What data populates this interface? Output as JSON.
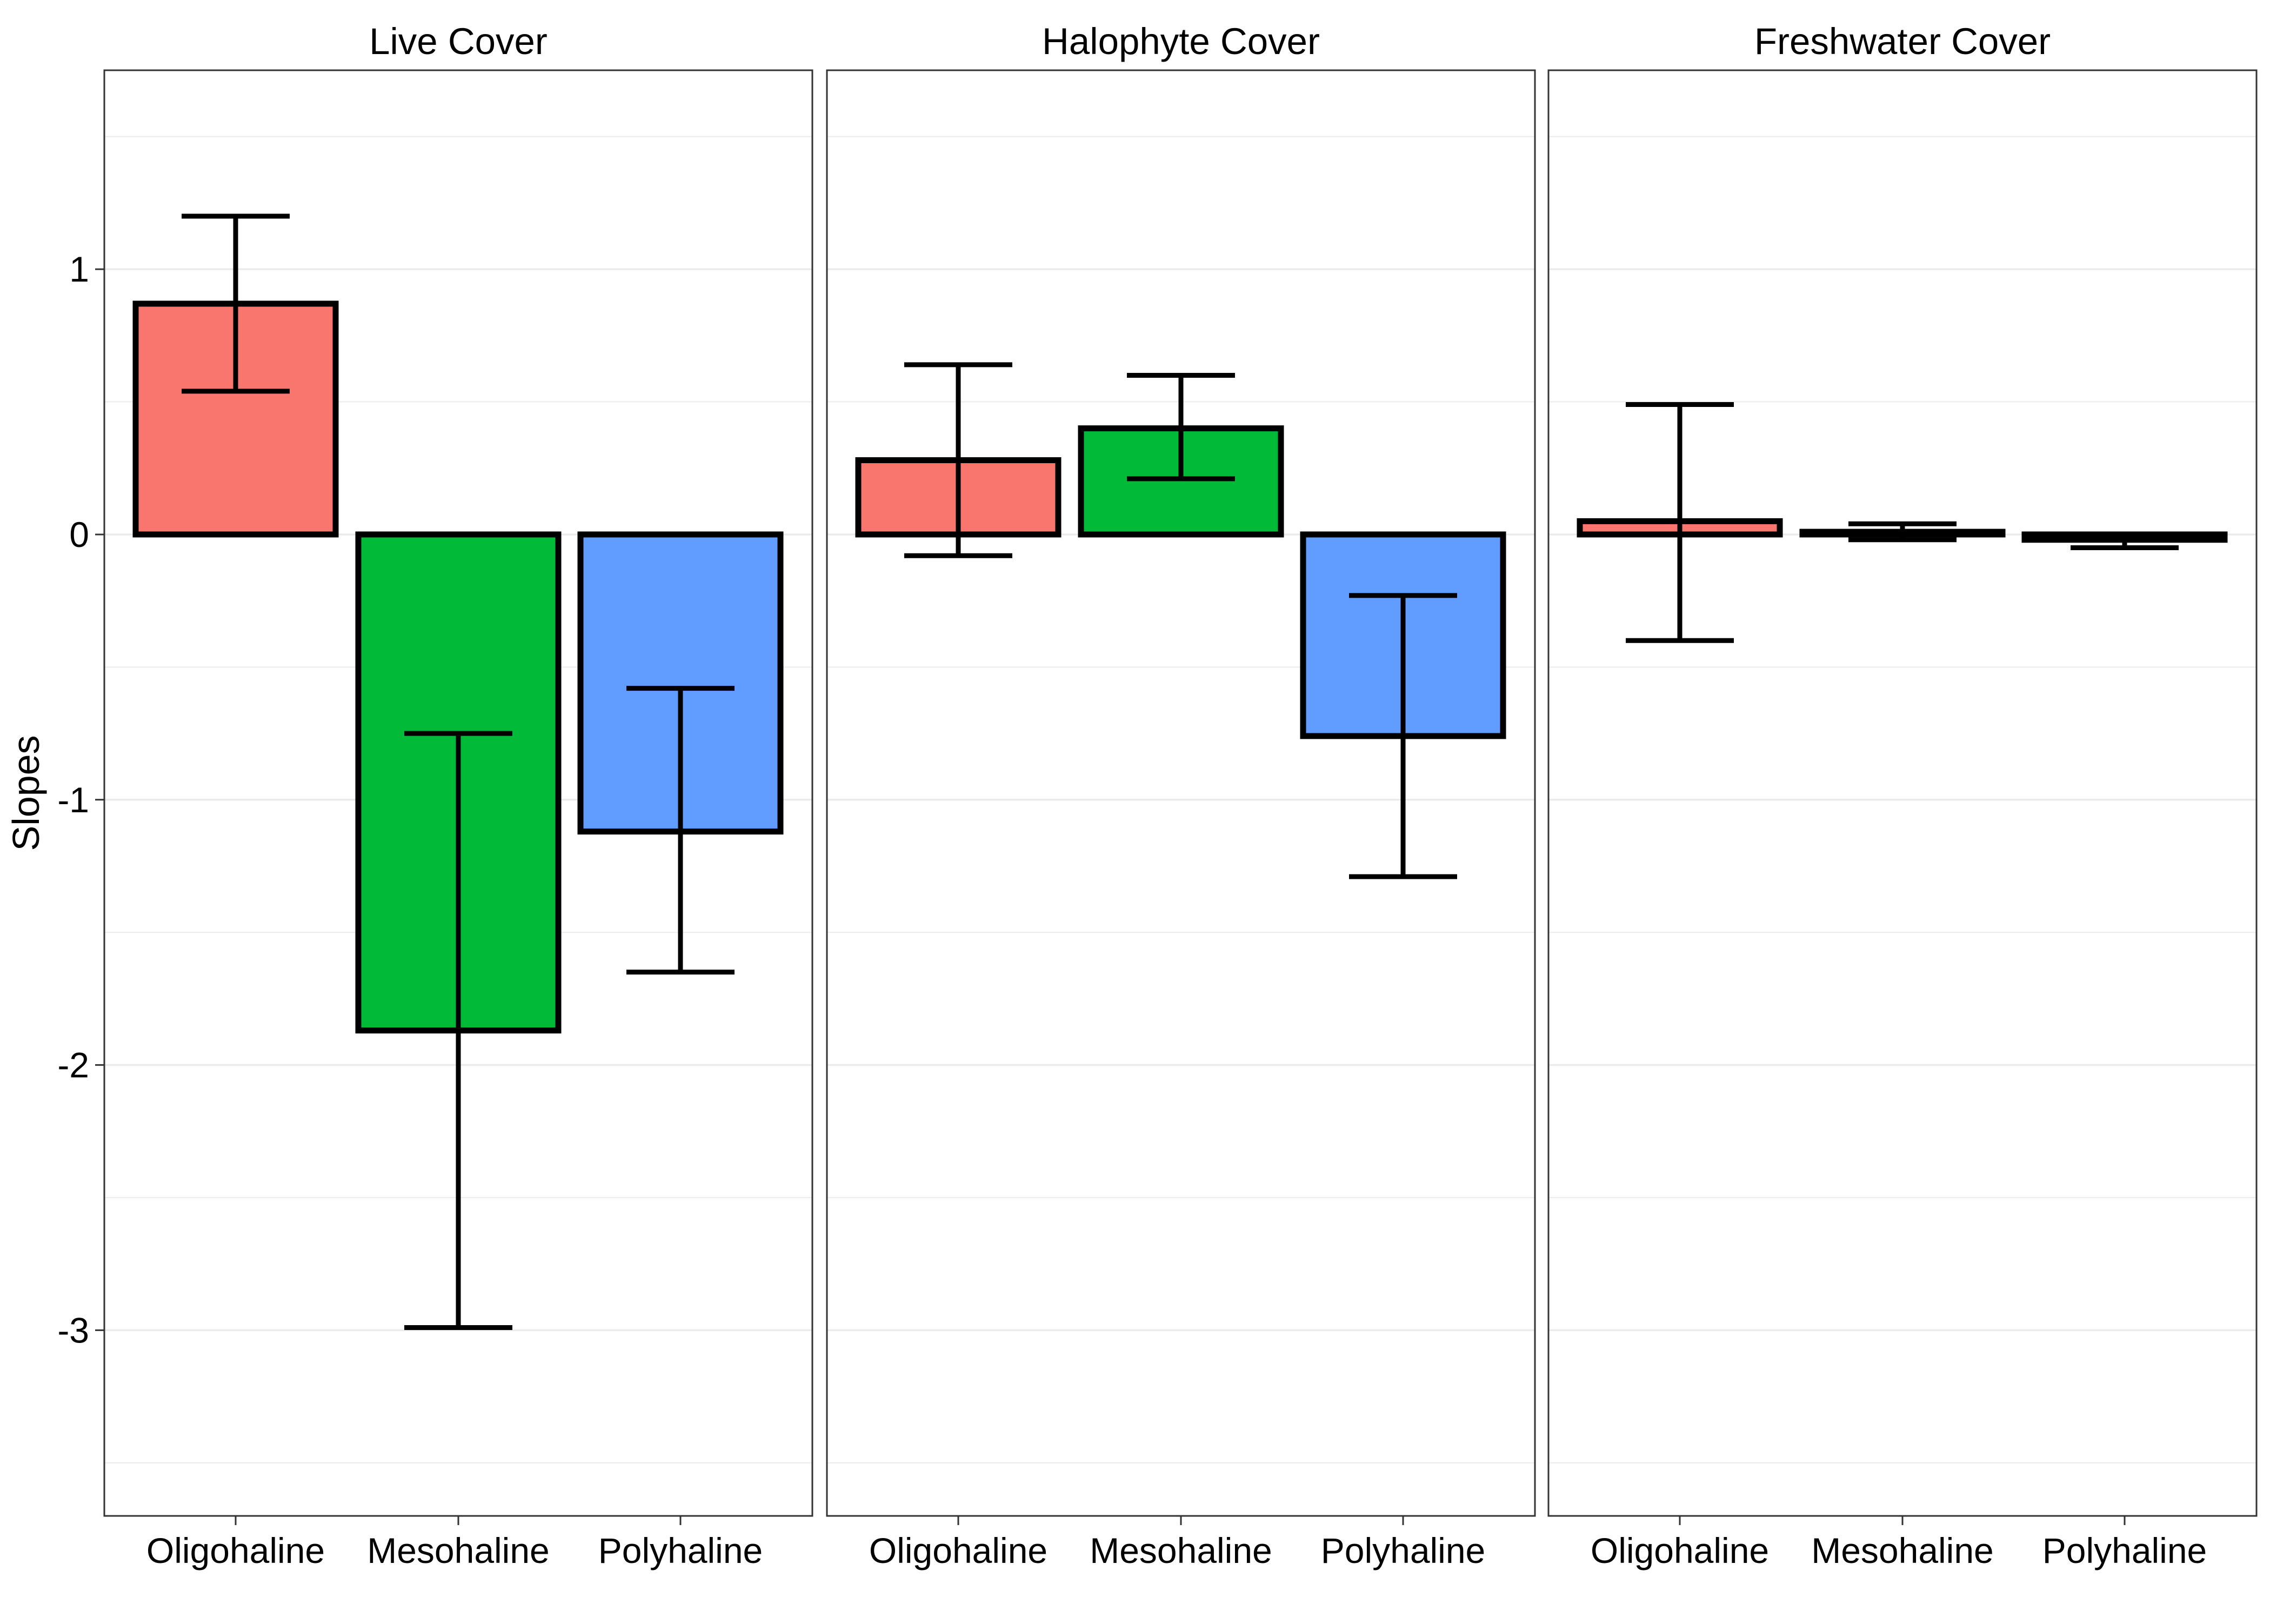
{
  "chart_data": {
    "type": "bar",
    "ylabel": "Slopes",
    "xlabel": "",
    "ylim": [
      -3.7,
      1.75
    ],
    "y_ticks": [
      1,
      0,
      -1,
      -2,
      -3
    ],
    "y_tick_labels": [
      "1",
      "0",
      "-1",
      "-2",
      "-3"
    ],
    "grid": true,
    "legend": "none",
    "categories": [
      "Oligohaline",
      "Mesohaline",
      "Polyhaline"
    ],
    "category_colors": [
      "#F8766D",
      "#00BA38",
      "#619CFF"
    ],
    "panels": [
      {
        "title": "Live Cover",
        "values": [
          0.87,
          -1.87,
          -1.12
        ],
        "error_low": [
          0.54,
          -2.99,
          -1.65
        ],
        "error_high": [
          1.2,
          -0.75,
          -0.58
        ]
      },
      {
        "title": "Halophyte Cover",
        "values": [
          0.28,
          0.4,
          -0.76
        ],
        "error_low": [
          -0.08,
          0.21,
          -1.29
        ],
        "error_high": [
          0.64,
          0.6,
          -0.23
        ]
      },
      {
        "title": "Freshwater Cover",
        "values": [
          0.05,
          0.01,
          -0.02
        ],
        "error_low": [
          -0.4,
          -0.02,
          -0.05
        ],
        "error_high": [
          0.49,
          0.04,
          0.0
        ]
      }
    ]
  }
}
